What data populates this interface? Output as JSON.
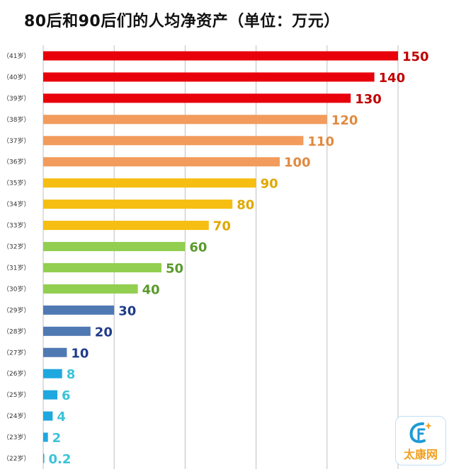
{
  "chart_data": {
    "type": "bar",
    "orientation": "horizontal",
    "title": "80后和90后们的人均净资产（单位：万元）",
    "xlabel": "",
    "ylabel": "",
    "xlim": [
      0,
      150
    ],
    "grid": true,
    "categories": [
      "（41岁）",
      "（40岁）",
      "（39岁）",
      "（38岁）",
      "（37岁）",
      "（36岁）",
      "（35岁）",
      "（34岁）",
      "（33岁）",
      "（32岁）",
      "（31岁）",
      "（30岁）",
      "（29岁）",
      "（28岁）",
      "（27岁）",
      "（26岁）",
      "（25岁）",
      "（24岁）",
      "（23岁）",
      "（22岁）"
    ],
    "values": [
      150,
      140,
      130,
      120,
      110,
      100,
      90,
      80,
      70,
      60,
      50,
      40,
      30,
      20,
      10,
      8,
      6,
      4,
      2,
      0.2
    ],
    "value_labels": [
      "150",
      "140",
      "130",
      "120",
      "110",
      "100",
      "90",
      "80",
      "70",
      "60",
      "50",
      "40",
      "30",
      "20",
      "10",
      "8",
      "6",
      "4",
      "2",
      "0.2"
    ],
    "bar_colors": [
      "#e8000b",
      "#e8000b",
      "#e8000b",
      "#f29b5c",
      "#f29b5c",
      "#f29b5c",
      "#f6be12",
      "#f6be12",
      "#f6be12",
      "#92cf50",
      "#92cf50",
      "#92cf50",
      "#4f79b3",
      "#4f79b3",
      "#4f79b3",
      "#1fa8e0",
      "#1fa8e0",
      "#1fa8e0",
      "#1fa8e0",
      "#1fa8e0"
    ],
    "label_colors": [
      "#c00000",
      "#c00000",
      "#c00000",
      "#e08a40",
      "#e08a40",
      "#e08a40",
      "#e0a800",
      "#e0a800",
      "#e0a800",
      "#5a9a2c",
      "#5a9a2c",
      "#5a9a2c",
      "#1f3c88",
      "#1f3c88",
      "#1f3c88",
      "#3cc3d9",
      "#3cc3d9",
      "#3cc3d9",
      "#3cc3d9",
      "#3cc3d9"
    ]
  },
  "watermark": {
    "text": "太康网"
  }
}
